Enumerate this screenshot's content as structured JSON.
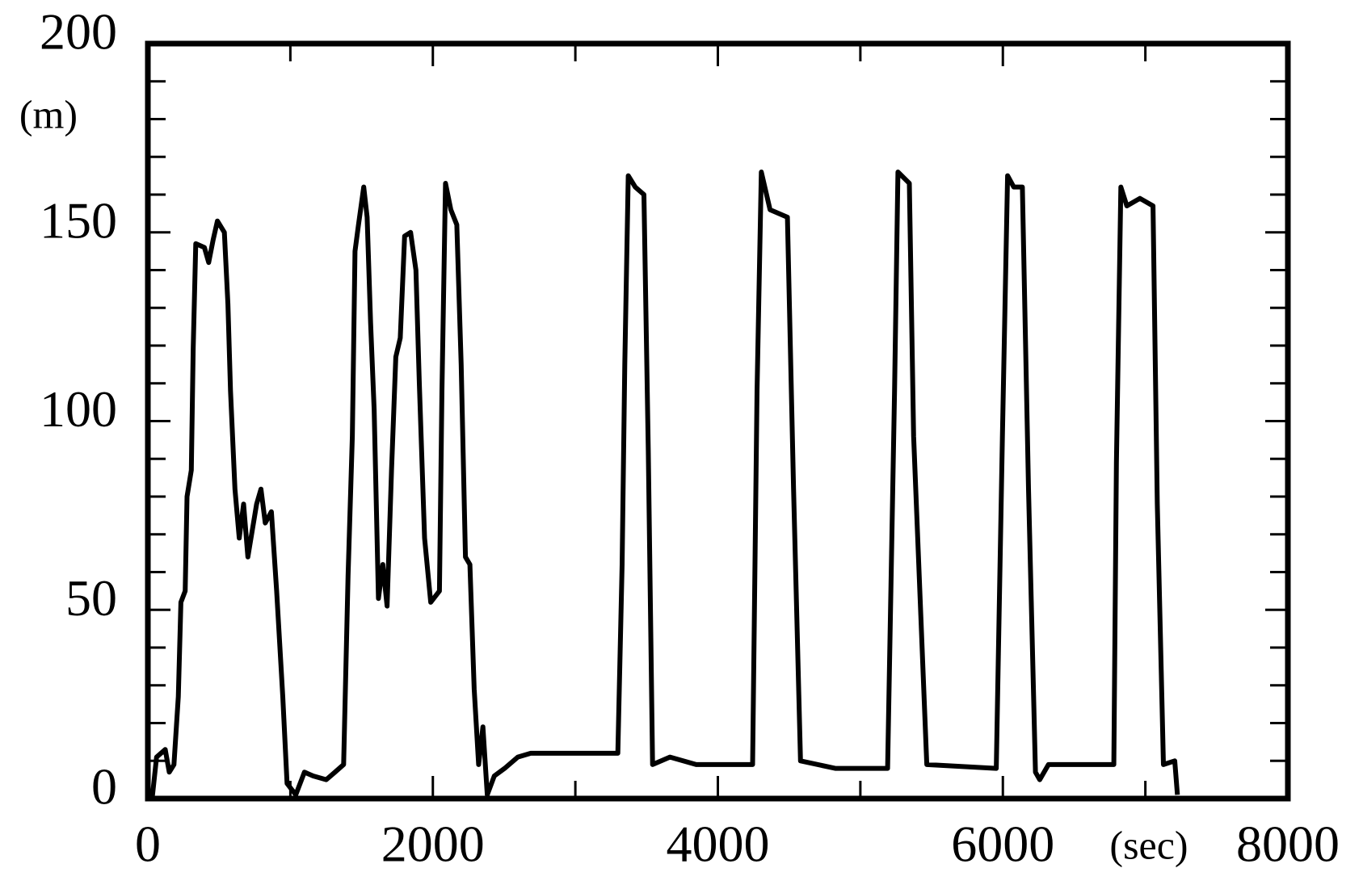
{
  "chart_data": {
    "type": "line",
    "x_label": "(sec)",
    "y_label": "(m)",
    "xlim": [
      0,
      8000
    ],
    "xticks": [
      0,
      2000,
      4000,
      6000,
      8000
    ],
    "xminor": [
      1000,
      3000,
      5000,
      7000
    ],
    "ylim": [
      0,
      200
    ],
    "yticks": [
      0,
      50,
      100,
      150,
      200
    ],
    "yminor": [
      10,
      20,
      30,
      40,
      60,
      70,
      80,
      90,
      110,
      120,
      130,
      140,
      160,
      170,
      180,
      190
    ],
    "series": [
      {
        "color": "#000000",
        "x": [
          30,
          61,
          122,
          150,
          183,
          214,
          232,
          262,
          275,
          305,
          318,
          336,
          397,
          427,
          458,
          488,
          537,
          562,
          580,
          611,
          641,
          672,
          702,
          763,
          794,
          824,
          867,
          904,
          947,
          977,
          1038,
          1099,
          1160,
          1252,
          1313,
          1374,
          1405,
          1435,
          1454,
          1478,
          1515,
          1539,
          1563,
          1588,
          1618,
          1649,
          1679,
          1710,
          1740,
          1771,
          1802,
          1844,
          1881,
          1905,
          1942,
          1985,
          2046,
          2064,
          2089,
          2126,
          2168,
          2199,
          2229,
          2260,
          2290,
          2321,
          2351,
          2382,
          2431,
          2504,
          2596,
          2687,
          3298,
          3328,
          3347,
          3371,
          3420,
          3481,
          3512,
          3542,
          3664,
          3848,
          4244,
          4275,
          4305,
          4366,
          4488,
          4531,
          4580,
          4824,
          5191,
          5240,
          5264,
          5344,
          5374,
          5466,
          5954,
          5997,
          6033,
          6076,
          6137,
          6180,
          6229,
          6259,
          6320,
          6779,
          6797,
          6828,
          6870,
          6962,
          7054,
          7084,
          7127,
          7206,
          7225
        ],
        "values": [
          0,
          11,
          13,
          7,
          9,
          27,
          52,
          55,
          80,
          87,
          119,
          147,
          146,
          142,
          148,
          153,
          150,
          131,
          108,
          82,
          69,
          78,
          64,
          78,
          82,
          73,
          76,
          55,
          27,
          4,
          1,
          7,
          6,
          5,
          7,
          9,
          59,
          96,
          145,
          152,
          162,
          154,
          126,
          103,
          53,
          62,
          51,
          87,
          117,
          122,
          149,
          150,
          140,
          110,
          69,
          52,
          55,
          108,
          163,
          156,
          152,
          115,
          64,
          62,
          29,
          9,
          19,
          1,
          6,
          8,
          11,
          12,
          12,
          62,
          115,
          165,
          162,
          160,
          92,
          9,
          11,
          9,
          9,
          108,
          166,
          156,
          154,
          82,
          10,
          8,
          8,
          108,
          166,
          163,
          96,
          9,
          8,
          96,
          165,
          162,
          162,
          82,
          7,
          5,
          9,
          9,
          89,
          162,
          157,
          159,
          157,
          78,
          9,
          10,
          1
        ]
      }
    ]
  }
}
